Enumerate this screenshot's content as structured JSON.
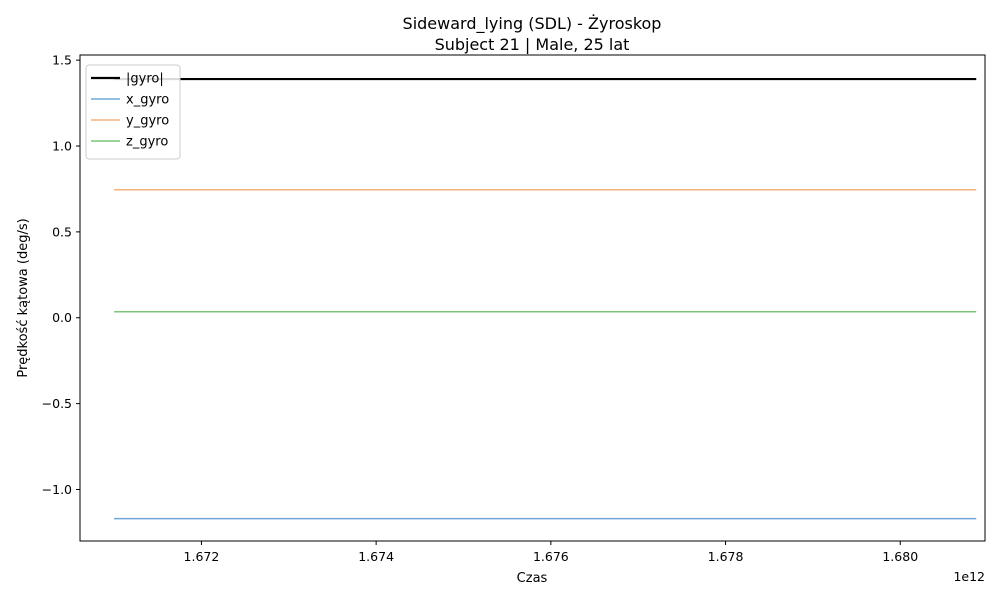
{
  "chart_data": {
    "type": "line",
    "title": "Sideward_lying (SDL) - Żyroskop",
    "subtitle": "Subject 21 | Male, 25 lat",
    "xlabel": "Czas",
    "ylabel": "Prędkość kątowa (deg/s)",
    "x_offset_label": "1e12",
    "xlim": [
      1.67061,
      1.68097
    ],
    "ylim": [
      -1.3,
      1.53
    ],
    "x_ticks": [
      1.672,
      1.674,
      1.676,
      1.678,
      1.68
    ],
    "x_tick_labels": [
      "1.672",
      "1.674",
      "1.676",
      "1.678",
      "1.680"
    ],
    "y_ticks": [
      -1.0,
      -0.5,
      0.0,
      0.5,
      1.0,
      1.5
    ],
    "y_tick_labels": [
      "−1.0",
      "−0.5",
      "0.0",
      "0.5",
      "1.0",
      "1.5"
    ],
    "grid": false,
    "legend_position": "top-left",
    "series": [
      {
        "name": "|gyro|",
        "color": "#000000",
        "width": 2.2,
        "x": [
          1.671,
          1.68087
        ],
        "values": [
          1.39,
          1.39
        ]
      },
      {
        "name": "x_gyro",
        "color": "#6fa8d6",
        "width": 1.5,
        "x": [
          1.671,
          1.68087
        ],
        "values": [
          -1.17,
          -1.17
        ]
      },
      {
        "name": "y_gyro",
        "color": "#f6b27b",
        "width": 1.5,
        "x": [
          1.671,
          1.68087
        ],
        "values": [
          0.745,
          0.745
        ]
      },
      {
        "name": "z_gyro",
        "color": "#7cc47c",
        "width": 1.5,
        "x": [
          1.671,
          1.68087
        ],
        "values": [
          0.035,
          0.035
        ]
      }
    ]
  }
}
